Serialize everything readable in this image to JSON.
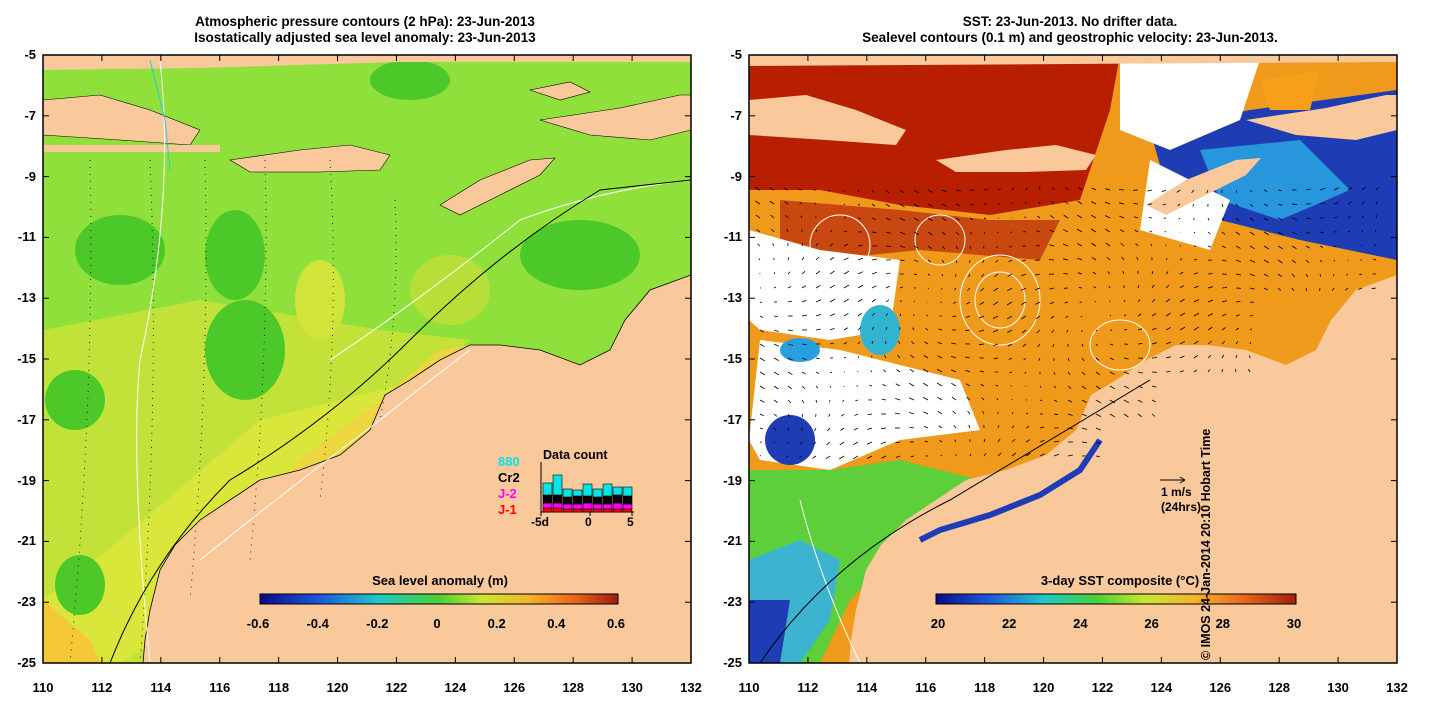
{
  "left_panel": {
    "title_line1": "Atmospheric pressure contours (2 hPa): 23-Jun-2013",
    "title_line2": "Isostatically adjusted sea level anomaly: 23-Jun-2013",
    "x_ticks": [
      "110",
      "112",
      "114",
      "116",
      "118",
      "120",
      "122",
      "124",
      "126",
      "128",
      "130",
      "132"
    ],
    "y_ticks": [
      "-5",
      "-7",
      "-9",
      "-11",
      "-13",
      "-15",
      "-17",
      "-19",
      "-21",
      "-23",
      "-25"
    ],
    "colorbar_title": "Sea level anomaly (m)",
    "colorbar_ticks": [
      "-0.6",
      "-0.4",
      "-0.2",
      "0",
      "0.2",
      "0.4",
      "0.6"
    ],
    "data_count": {
      "title": "Data count",
      "sources": [
        {
          "label": "880",
          "color": "#00e5e5"
        },
        {
          "label": "Cr2",
          "color": "#000000"
        },
        {
          "label": "J-2",
          "color": "#ff00ff"
        },
        {
          "label": "J-1",
          "color": "#ff0000"
        }
      ],
      "axis_labels": [
        "-5d",
        "0",
        "5"
      ]
    }
  },
  "right_panel": {
    "title_line1": "SST: 23-Jun-2013. No drifter data.",
    "title_line2": "Sealevel contours (0.1 m) and geostrophic velocity: 23-Jun-2013.",
    "x_ticks": [
      "110",
      "112",
      "114",
      "116",
      "118",
      "120",
      "122",
      "124",
      "126",
      "128",
      "130",
      "132"
    ],
    "y_ticks": [
      "-5",
      "-7",
      "-9",
      "-11",
      "-13",
      "-15",
      "-17",
      "-19",
      "-21",
      "-23",
      "-25"
    ],
    "colorbar_title": "3-day SST composite (°C)",
    "colorbar_ticks": [
      "20",
      "22",
      "24",
      "26",
      "28",
      "30"
    ],
    "velocity_scale_line1": "1 m/s",
    "velocity_scale_line2": "(24hrs)"
  },
  "credit": "© IMOS 24-Jan-2014 20:10 Hobart Time",
  "colors": {
    "land": "#f9c89b",
    "ocean_green": "#8fe03a",
    "ocean_yellow": "#d9e63a",
    "sst_red": "#b81e00",
    "sst_orange": "#ef9a1a",
    "sst_green": "#5ccf3a",
    "cloud": "#ffffff"
  }
}
